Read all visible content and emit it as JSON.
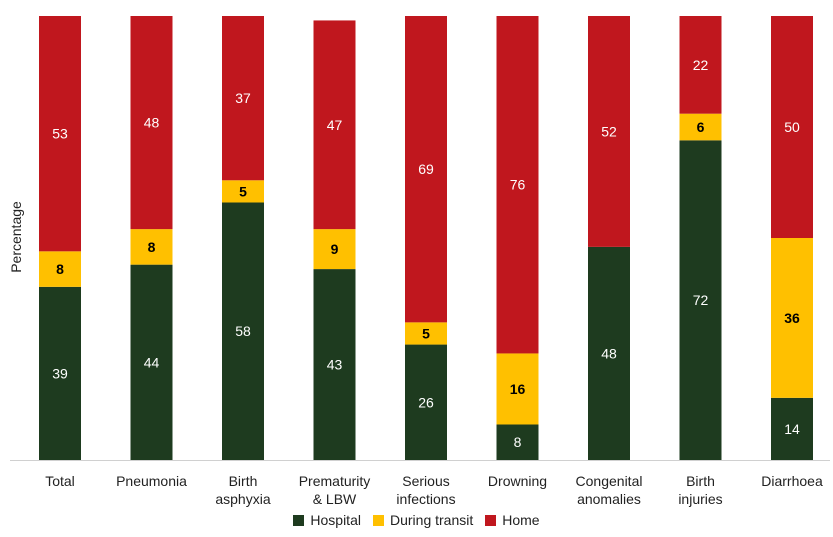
{
  "chart_data": {
    "type": "bar",
    "stacked": true,
    "ylabel": "Percentage",
    "ylim": [
      0,
      100
    ],
    "grid": false,
    "legend_position": "bottom",
    "categories": [
      [
        "Total"
      ],
      [
        "Pneumonia"
      ],
      [
        "Birth",
        "asphyxia"
      ],
      [
        "Prematurity",
        "& LBW"
      ],
      [
        "Serious",
        "infections"
      ],
      [
        "Drowning"
      ],
      [
        "Congenital",
        "anomalies"
      ],
      [
        "Birth",
        "injuries"
      ],
      [
        "Diarrhoea"
      ]
    ],
    "series": [
      {
        "name": "Hospital",
        "color": "#1e3b1f",
        "label_color": "#ffffff",
        "label_bold": false,
        "values": [
          39,
          44,
          58,
          43,
          26,
          8,
          48,
          72,
          14
        ]
      },
      {
        "name": "During transit",
        "color": "#ffc000",
        "label_color": "#000000",
        "label_bold": true,
        "values": [
          8,
          8,
          5,
          9,
          5,
          16,
          null,
          6,
          36
        ]
      },
      {
        "name": "Home",
        "color": "#c0171e",
        "label_color": "#ffffff",
        "label_bold": false,
        "values": [
          53,
          48,
          37,
          47,
          69,
          76,
          52,
          22,
          50
        ]
      }
    ]
  }
}
